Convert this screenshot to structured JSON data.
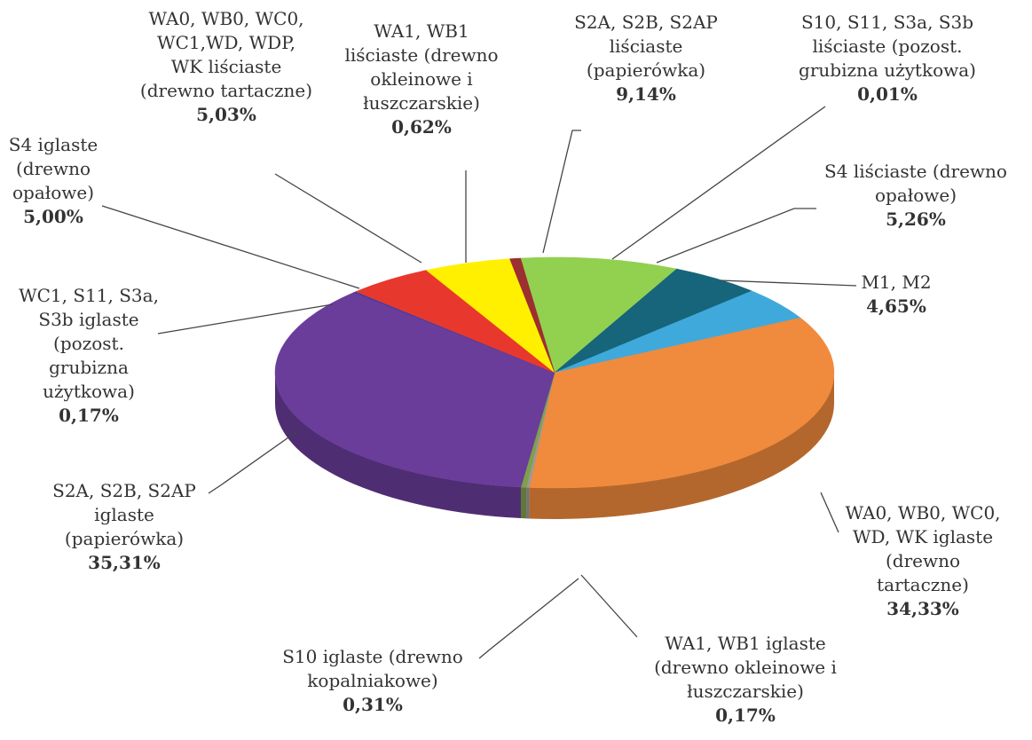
{
  "chart_data": {
    "type": "pie",
    "categories": [
      "S2A, S2B, S2AP liściaste (papierówka)",
      "S10, S11, S3a, S3b liściaste (pozost. grubizna użytkowa)",
      "S4 liściaste (drewno opałowe)",
      "M1, M2",
      "WA0, WB0, WC0, WD, WK iglaste (drewno tartaczne)",
      "WA1, WB1 iglaste (drewno okleinowe i łuszczarskie)",
      "S10 iglaste (drewno kopalniakowe)",
      "S2A, S2B, S2AP iglaste (papierówka)",
      "WC1, S11, S3a, S3b iglaste (pozost. grubizna użytkowa)",
      "S4 iglaste (drewno opałowe)",
      "WA0, WB0, WC0, WC1,WD, WDP, WK liściaste (drewno tartaczne)",
      "WA1, WB1 liściaste (drewno okleinowe i łuszczarskie)"
    ],
    "values": [
      9.14,
      0.01,
      5.26,
      4.65,
      34.33,
      0.17,
      0.31,
      35.31,
      0.17,
      5.0,
      5.03,
      0.62
    ],
    "value_labels": [
      "9,14%",
      "0,01%",
      "5,26%",
      "4,65%",
      "34,33%",
      "0,17%",
      "0,31%",
      "35,31%",
      "0,17%",
      "5,00%",
      "5,03%",
      "0,62%"
    ],
    "colors": [
      "#92d050",
      "#2e75b6",
      "#17657a",
      "#3fa9dc",
      "#f08a3c",
      "#9a9a9a",
      "#7fa04a",
      "#6a3d9a",
      "#4040a0",
      "#e8382d",
      "#fff000",
      "#9c2f2f"
    ]
  }
}
